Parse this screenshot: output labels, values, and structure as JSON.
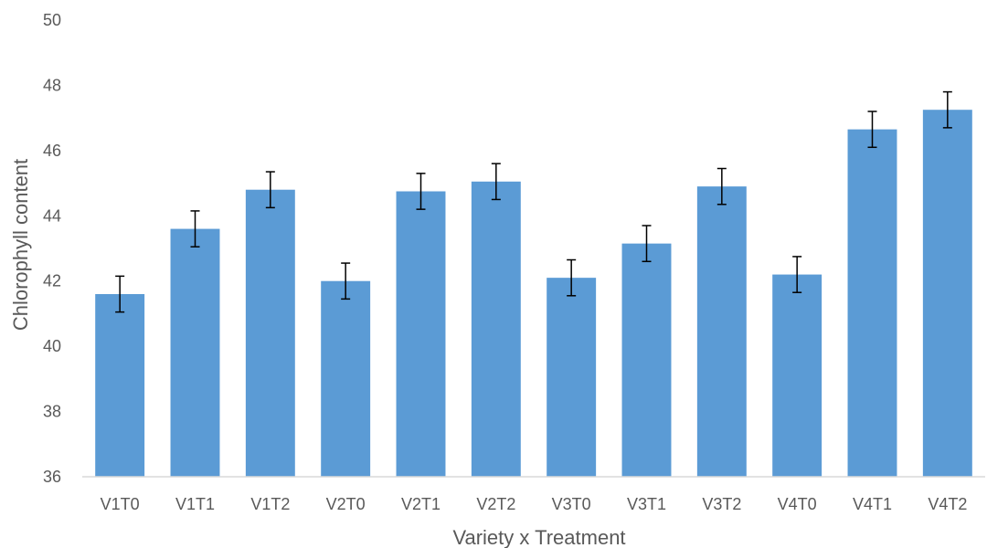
{
  "chart_data": {
    "type": "bar",
    "title": "",
    "xlabel": "Variety x Treatment",
    "ylabel": "Chlorophyll content",
    "ylim": [
      36,
      50
    ],
    "yticks": [
      36,
      38,
      40,
      42,
      44,
      46,
      48,
      50
    ],
    "grid": false,
    "legend": "none",
    "bar_color": "#5B9BD5",
    "categories": [
      "V1T0",
      "V1T1",
      "V1T2",
      "V2T0",
      "V2T1",
      "V2T2",
      "V3T0",
      "V3T1",
      "V3T2",
      "V4T0",
      "V4T1",
      "V4T2"
    ],
    "values": [
      41.6,
      43.6,
      44.8,
      42.0,
      44.75,
      45.05,
      42.1,
      43.15,
      44.9,
      42.2,
      46.65,
      47.25
    ],
    "error_bars": [
      0.55,
      0.55,
      0.55,
      0.55,
      0.55,
      0.55,
      0.55,
      0.55,
      0.55,
      0.55,
      0.55,
      0.55
    ]
  }
}
